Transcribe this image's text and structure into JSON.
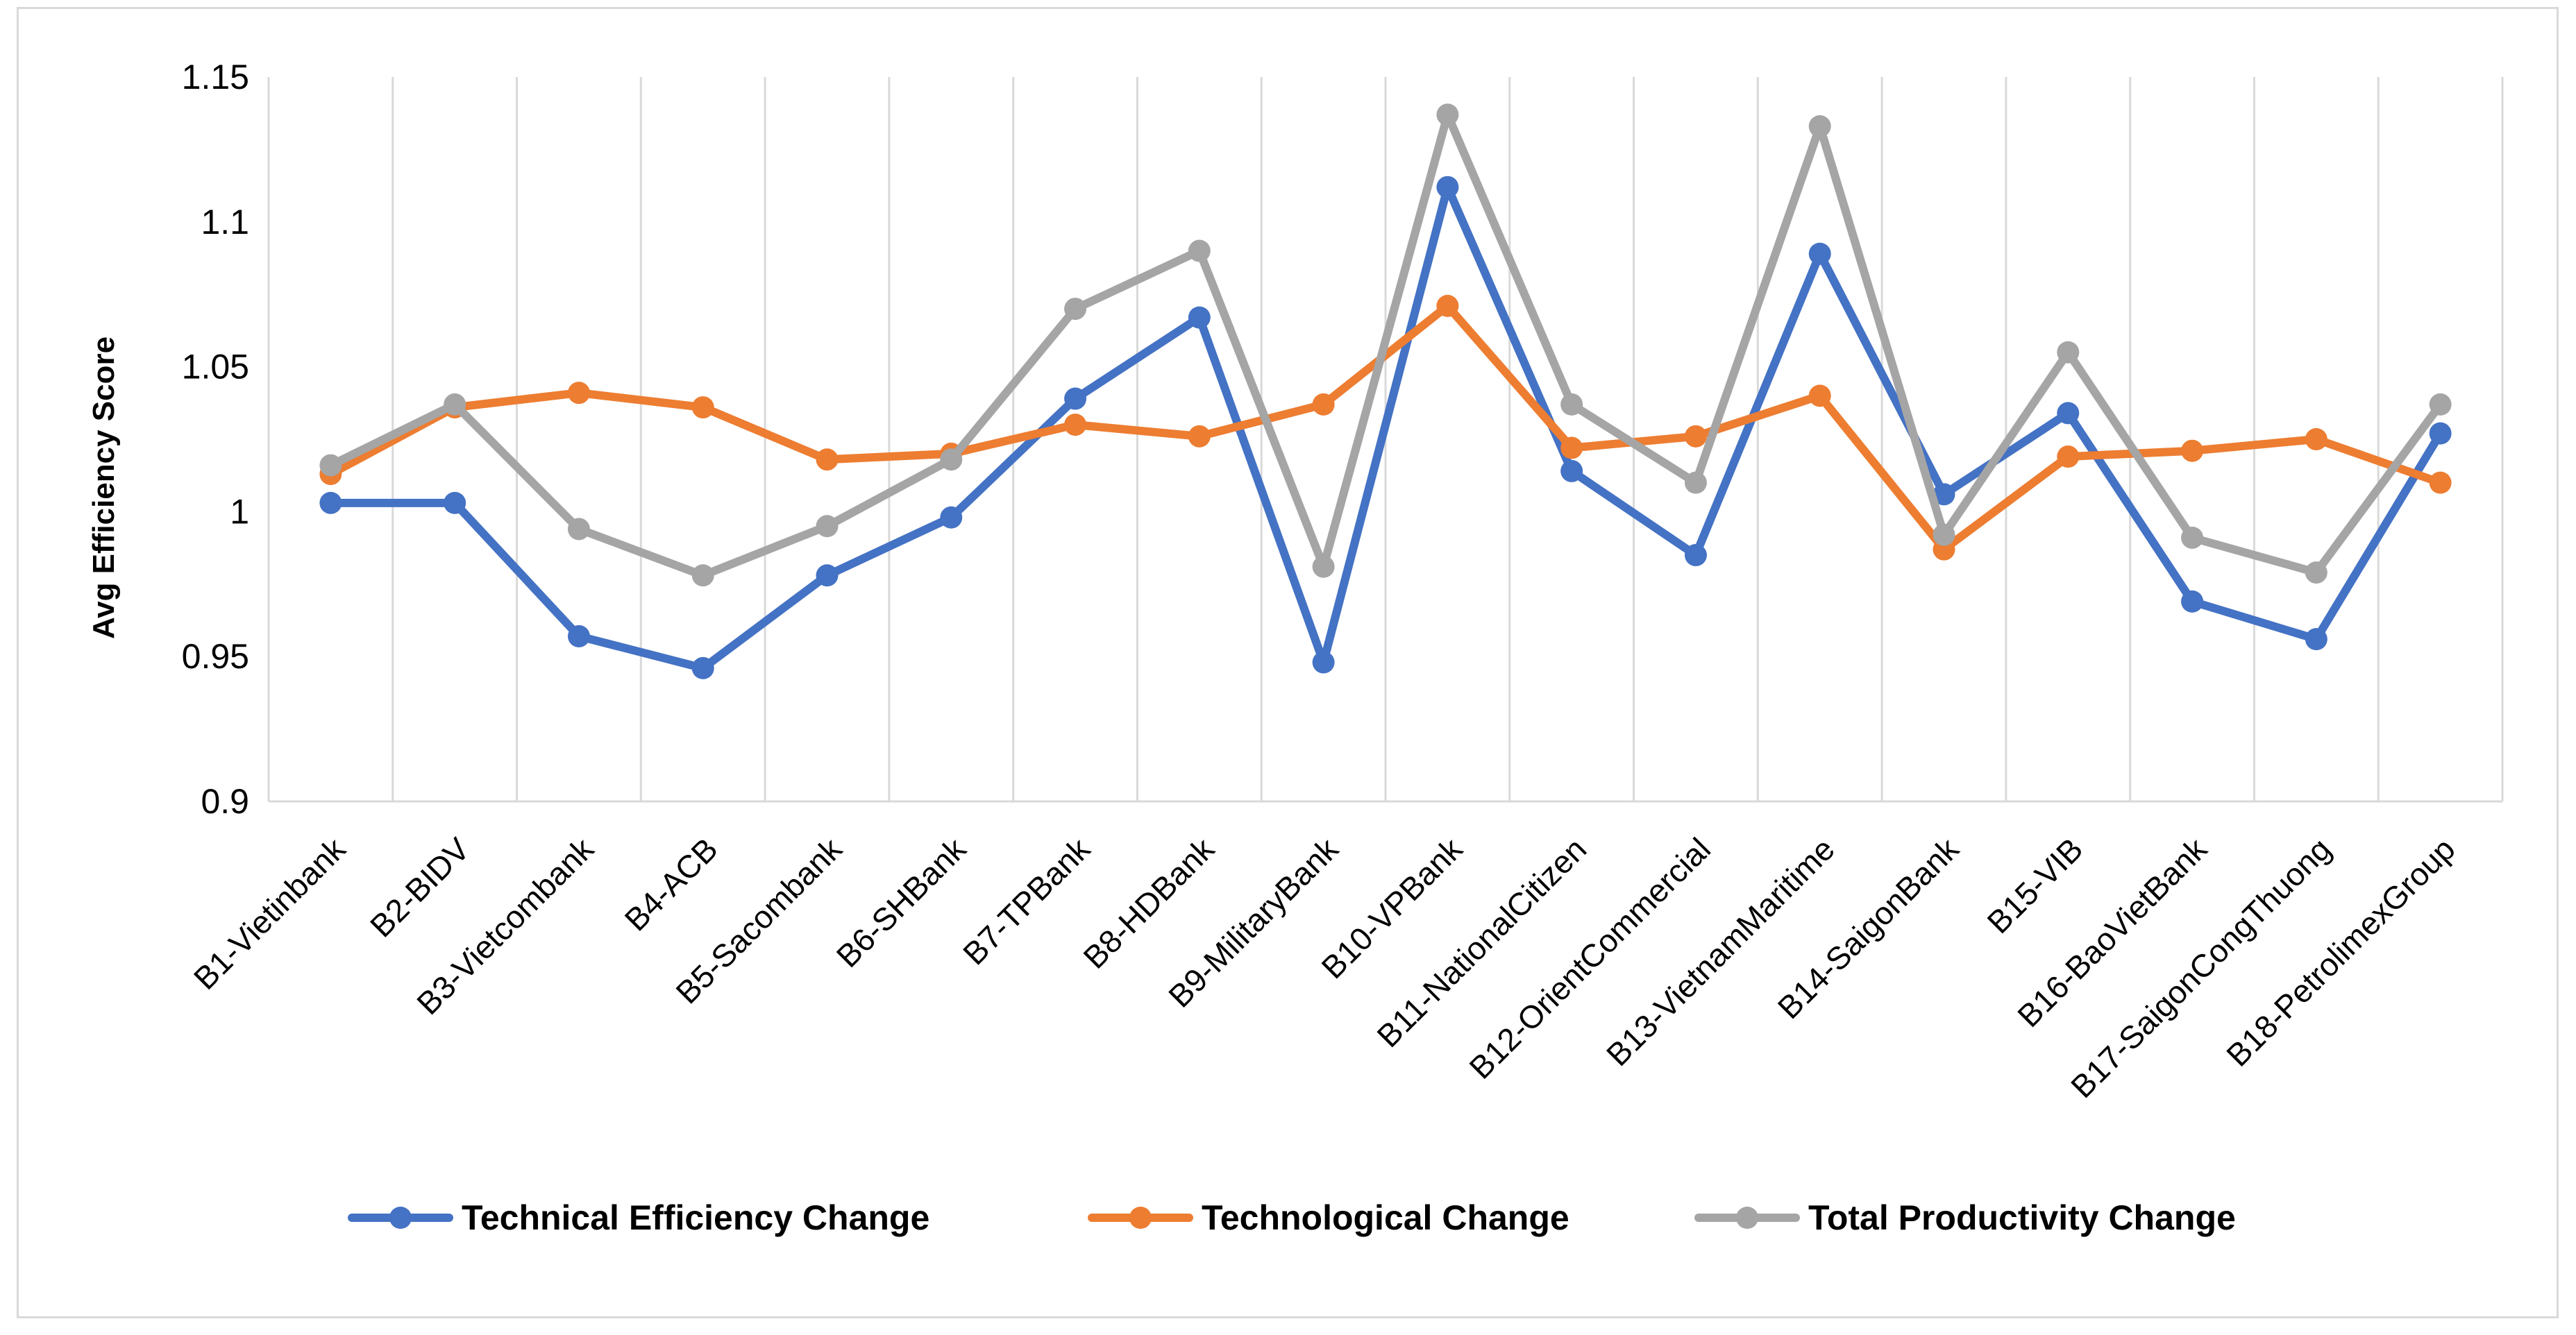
{
  "chart_data": {
    "type": "line",
    "title": "",
    "xlabel": "",
    "ylabel": "Avg Efficiency Score",
    "ylim": [
      0.9,
      1.15
    ],
    "yticks": [
      "0.9",
      "0.95",
      "1",
      "1.05",
      "1.1",
      "1.15"
    ],
    "grid": "vertical",
    "legend": "bottom",
    "categories": [
      "B1-Vietinbank",
      "B2-BIDV",
      "B3-Vietcombank",
      "B4-ACB",
      "B5-Sacombank",
      "B6-SHBank",
      "B7-TPBank",
      "B8-HDBank",
      "B9-MilitaryBank",
      "B10-VPBank",
      "B11-NationalCitizen",
      "B12-OrientCommercial",
      "B13-VietnamMaritime",
      "B14-SaigonBank",
      "B15-VIB",
      "B16-BaoVietBank",
      "B17-SaigonCongThuong",
      "B18-PetrolimexGroup"
    ],
    "series": [
      {
        "name": "Technical Efficiency Change",
        "color": "#4472c4",
        "values": [
          1.003,
          1.003,
          0.957,
          0.946,
          0.978,
          0.998,
          1.039,
          1.067,
          0.948,
          1.112,
          1.014,
          0.985,
          1.089,
          1.006,
          1.034,
          0.969,
          0.956,
          1.027
        ]
      },
      {
        "name": "Technological Change",
        "color": "#ed7d31",
        "values": [
          1.013,
          1.036,
          1.041,
          1.036,
          1.018,
          1.02,
          1.03,
          1.026,
          1.037,
          1.071,
          1.022,
          1.026,
          1.04,
          0.987,
          1.019,
          1.021,
          1.025,
          1.01
        ]
      },
      {
        "name": "Total Productivity Change",
        "color": "#a5a5a5",
        "values": [
          1.016,
          1.037,
          0.994,
          0.978,
          0.995,
          1.018,
          1.07,
          1.09,
          0.981,
          1.137,
          1.037,
          1.01,
          1.133,
          0.992,
          1.055,
          0.991,
          0.979,
          1.037
        ]
      }
    ]
  }
}
